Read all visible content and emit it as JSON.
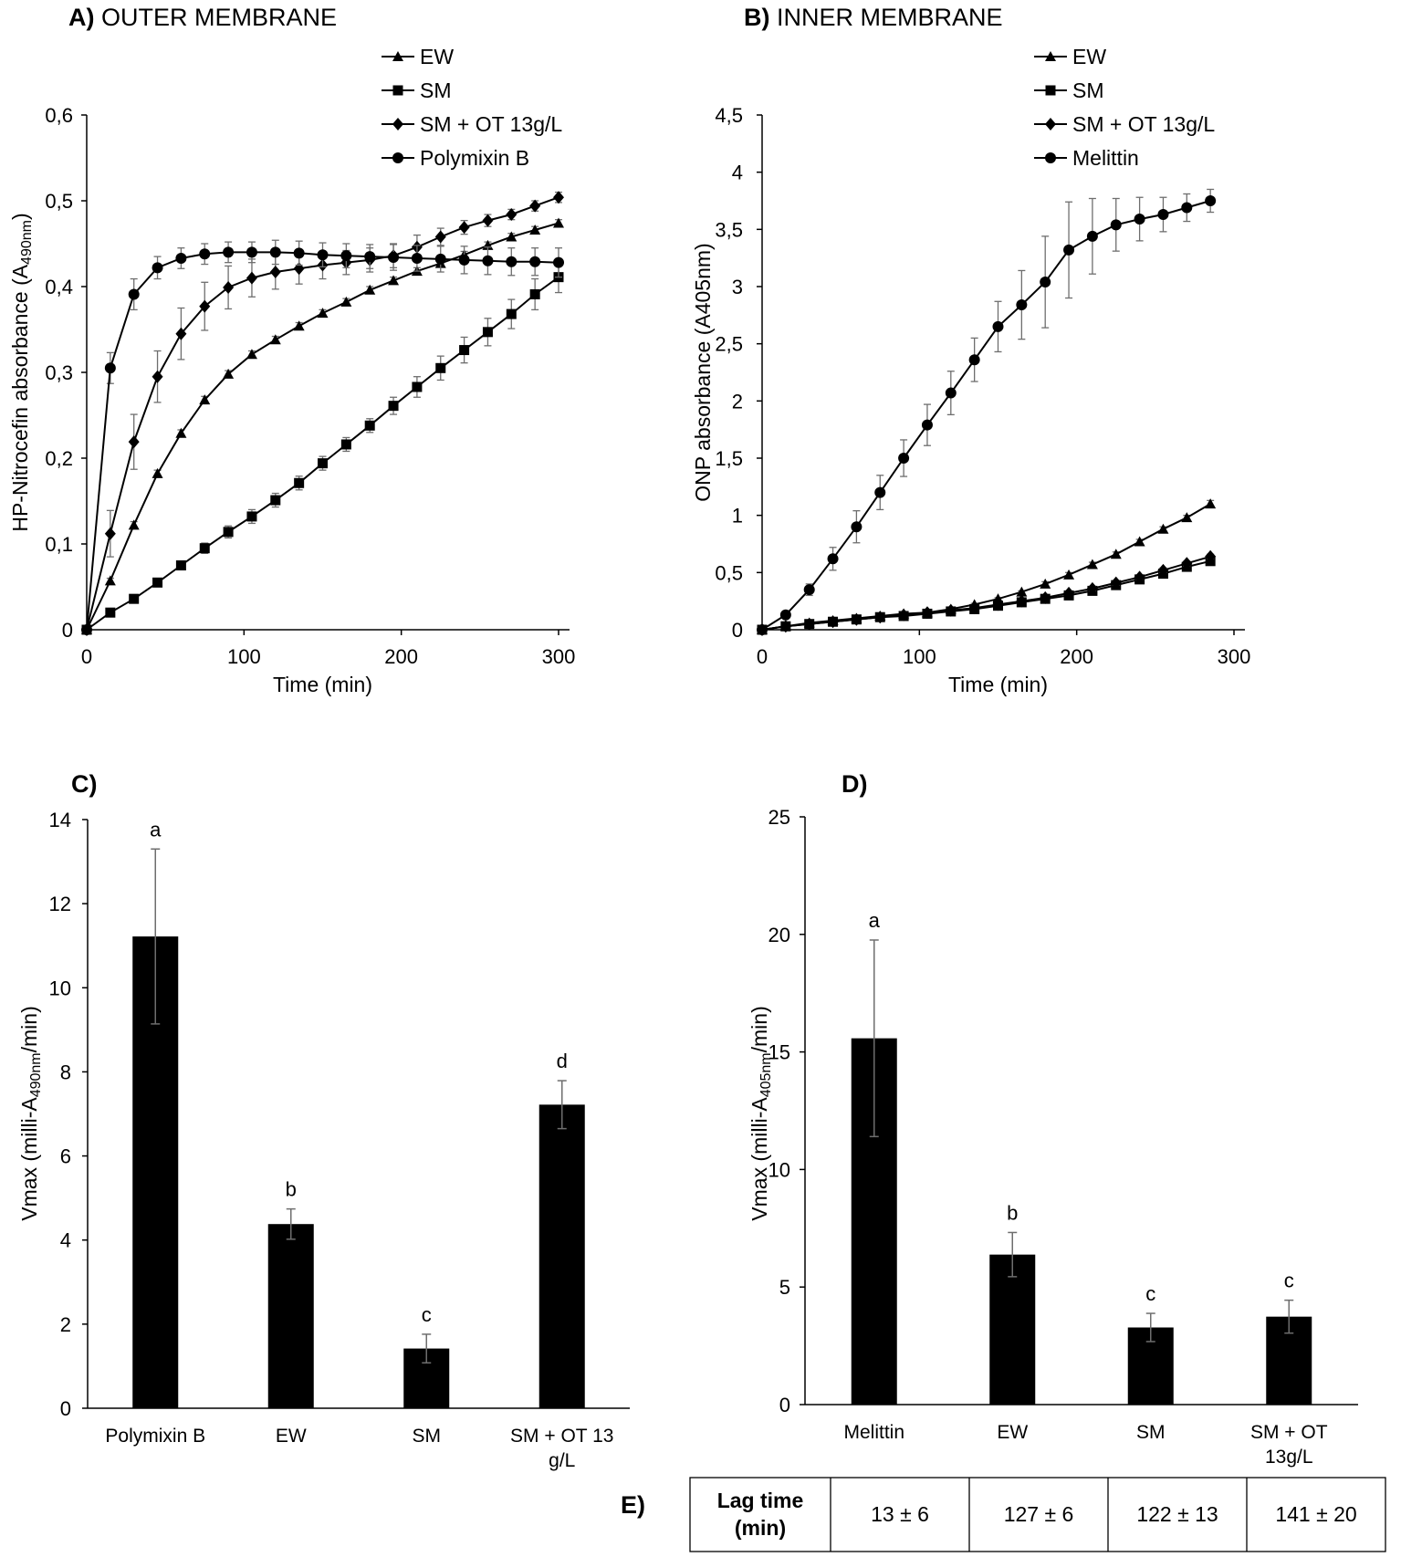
{
  "panel_labels": {
    "A": "A)",
    "B": "B)",
    "C": "C)",
    "D": "D)",
    "E": "E)"
  },
  "chart_data": [
    {
      "id": "A",
      "type": "line",
      "title": "OUTER MEMBRANE",
      "xlabel": "Time (min)",
      "ylabel_parts": [
        "HP-Nitrocefin absorbance (A",
        "490nm",
        ")"
      ],
      "xlim": [
        0,
        300
      ],
      "ylim": [
        0,
        0.6
      ],
      "xticks": [
        0,
        100,
        200,
        300
      ],
      "yticks": [
        0,
        0.1,
        0.2,
        0.3,
        0.4,
        0.5,
        0.6
      ],
      "ytick_labels": [
        "0",
        "0,1",
        "0,2",
        "0,3",
        "0,4",
        "0,5",
        "0,6"
      ],
      "x": [
        0,
        15,
        30,
        45,
        60,
        75,
        90,
        105,
        120,
        135,
        150,
        165,
        180,
        195,
        210,
        225,
        240,
        255,
        270,
        285,
        300
      ],
      "series": [
        {
          "name": "EW",
          "marker": "triangle",
          "values": [
            0,
            0.057,
            0.122,
            0.182,
            0.229,
            0.268,
            0.298,
            0.321,
            0.338,
            0.354,
            0.369,
            0.382,
            0.396,
            0.407,
            0.418,
            0.427,
            0.437,
            0.448,
            0.458,
            0.466,
            0.474
          ],
          "errors": [
            0,
            0.003,
            0.004,
            0.004,
            0.004,
            0.004,
            0.004,
            0.004,
            0.004,
            0.004,
            0.004,
            0.004,
            0.004,
            0.004,
            0.004,
            0.004,
            0.004,
            0.004,
            0.004,
            0.004,
            0.004
          ]
        },
        {
          "name": "SM",
          "marker": "square",
          "values": [
            0,
            0.02,
            0.036,
            0.055,
            0.075,
            0.095,
            0.114,
            0.132,
            0.151,
            0.171,
            0.194,
            0.216,
            0.238,
            0.261,
            0.283,
            0.305,
            0.326,
            0.347,
            0.368,
            0.391,
            0.411
          ],
          "errors": [
            0,
            0.002,
            0.003,
            0.004,
            0.005,
            0.006,
            0.007,
            0.008,
            0.008,
            0.008,
            0.008,
            0.008,
            0.008,
            0.01,
            0.012,
            0.014,
            0.015,
            0.016,
            0.017,
            0.018,
            0.018
          ]
        },
        {
          "name": "SM + OT 13g/L",
          "marker": "diamond",
          "values": [
            0,
            0.112,
            0.219,
            0.295,
            0.345,
            0.377,
            0.399,
            0.41,
            0.417,
            0.421,
            0.425,
            0.428,
            0.431,
            0.436,
            0.446,
            0.458,
            0.469,
            0.477,
            0.484,
            0.494,
            0.504
          ],
          "errors": [
            0,
            0.027,
            0.032,
            0.03,
            0.03,
            0.028,
            0.025,
            0.022,
            0.02,
            0.018,
            0.016,
            0.014,
            0.014,
            0.014,
            0.014,
            0.01,
            0.008,
            0.007,
            0.006,
            0.006,
            0.006
          ]
        },
        {
          "name": "Polymixin B",
          "marker": "circle",
          "values": [
            0,
            0.305,
            0.391,
            0.422,
            0.433,
            0.438,
            0.44,
            0.44,
            0.44,
            0.439,
            0.437,
            0.436,
            0.435,
            0.434,
            0.433,
            0.432,
            0.431,
            0.43,
            0.429,
            0.429,
            0.428
          ],
          "errors": [
            0,
            0.018,
            0.018,
            0.013,
            0.012,
            0.012,
            0.012,
            0.012,
            0.014,
            0.014,
            0.014,
            0.014,
            0.014,
            0.015,
            0.015,
            0.015,
            0.016,
            0.016,
            0.016,
            0.016,
            0.017
          ]
        }
      ]
    },
    {
      "id": "B",
      "type": "line",
      "title": "INNER MEMBRANE",
      "xlabel": "Time (min)",
      "ylabel": "ONP absorbance (A405nm)",
      "xlim": [
        0,
        300
      ],
      "ylim": [
        0,
        4.5
      ],
      "xticks": [
        0,
        100,
        200,
        300
      ],
      "yticks": [
        0,
        0.5,
        1,
        1.5,
        2,
        2.5,
        3,
        3.5,
        4,
        4.5
      ],
      "ytick_labels": [
        "0",
        "0,5",
        "1",
        "1,5",
        "2",
        "2,5",
        "3",
        "3,5",
        "4",
        "4,5"
      ],
      "x": [
        0,
        15,
        30,
        45,
        60,
        75,
        90,
        105,
        120,
        135,
        150,
        165,
        180,
        195,
        210,
        225,
        240,
        255,
        270,
        285
      ],
      "series": [
        {
          "name": "EW",
          "marker": "triangle",
          "values": [
            0,
            0.03,
            0.06,
            0.08,
            0.1,
            0.12,
            0.14,
            0.15,
            0.18,
            0.22,
            0.27,
            0.33,
            0.4,
            0.48,
            0.57,
            0.66,
            0.77,
            0.88,
            0.98,
            1.1
          ],
          "errors": [
            0,
            0.01,
            0.01,
            0.01,
            0.01,
            0.01,
            0.01,
            0.01,
            0.01,
            0.01,
            0.01,
            0.01,
            0.02,
            0.02,
            0.02,
            0.02,
            0.02,
            0.02,
            0.02,
            0.03
          ]
        },
        {
          "name": "SM",
          "marker": "square",
          "values": [
            0,
            0.03,
            0.05,
            0.07,
            0.09,
            0.11,
            0.12,
            0.14,
            0.16,
            0.18,
            0.21,
            0.24,
            0.27,
            0.3,
            0.34,
            0.39,
            0.44,
            0.49,
            0.55,
            0.6
          ],
          "errors": [
            0,
            0.01,
            0.01,
            0.01,
            0.01,
            0.01,
            0.01,
            0.01,
            0.01,
            0.01,
            0.01,
            0.01,
            0.01,
            0.01,
            0.02,
            0.02,
            0.02,
            0.02,
            0.02,
            0.02
          ]
        },
        {
          "name": "SM + OT 13g/L",
          "marker": "diamond",
          "values": [
            0,
            0.03,
            0.05,
            0.07,
            0.09,
            0.11,
            0.13,
            0.15,
            0.17,
            0.19,
            0.22,
            0.25,
            0.28,
            0.32,
            0.36,
            0.41,
            0.46,
            0.52,
            0.58,
            0.64
          ],
          "errors": [
            0,
            0.01,
            0.01,
            0.01,
            0.01,
            0.01,
            0.01,
            0.01,
            0.01,
            0.01,
            0.01,
            0.01,
            0.01,
            0.01,
            0.02,
            0.02,
            0.02,
            0.02,
            0.02,
            0.02
          ]
        },
        {
          "name": "Melittin",
          "marker": "circle",
          "values": [
            0,
            0.13,
            0.35,
            0.62,
            0.9,
            1.2,
            1.5,
            1.79,
            2.07,
            2.36,
            2.65,
            2.84,
            3.04,
            3.32,
            3.44,
            3.54,
            3.59,
            3.63,
            3.69,
            3.75
          ],
          "errors": [
            0,
            0.02,
            0.05,
            0.1,
            0.14,
            0.15,
            0.16,
            0.18,
            0.19,
            0.19,
            0.22,
            0.3,
            0.4,
            0.42,
            0.33,
            0.23,
            0.19,
            0.15,
            0.12,
            0.1
          ]
        }
      ]
    },
    {
      "id": "C",
      "type": "bar",
      "ylabel_parts": [
        "Vmax (milli-A",
        "490nm",
        "/min)"
      ],
      "categories": [
        "Polymixin B",
        "EW",
        "SM",
        "SM + OT 13 g/L"
      ],
      "category_lines": [
        [
          "Polymixin B"
        ],
        [
          "EW"
        ],
        [
          "SM"
        ],
        [
          "SM + OT 13",
          "g/L"
        ]
      ],
      "values": [
        11.22,
        4.38,
        1.42,
        7.22
      ],
      "errors": [
        2.08,
        0.36,
        0.34,
        0.57
      ],
      "significance": [
        "a",
        "b",
        "c",
        "d"
      ],
      "ylim": [
        0,
        14
      ],
      "yticks": [
        0,
        2,
        4,
        6,
        8,
        10,
        12,
        14
      ],
      "ytick_labels": [
        "0",
        "2",
        "4",
        "6",
        "8",
        "10",
        "12",
        "14"
      ]
    },
    {
      "id": "D",
      "type": "bar",
      "ylabel_parts": [
        "Vmax (milli-A",
        "405nm",
        "/min)"
      ],
      "categories": [
        "Melittin",
        "EW",
        "SM",
        "SM + OT 13g/L"
      ],
      "category_lines": [
        [
          "Melittin"
        ],
        [
          "EW"
        ],
        [
          "SM"
        ],
        [
          "SM + OT",
          "13g/L"
        ]
      ],
      "values": [
        15.58,
        6.38,
        3.28,
        3.74
      ],
      "errors": [
        4.18,
        0.94,
        0.6,
        0.7
      ],
      "significance": [
        "a",
        "b",
        "c",
        "c"
      ],
      "ylim": [
        0,
        25
      ],
      "yticks": [
        0,
        5,
        10,
        15,
        20,
        25
      ],
      "ytick_labels": [
        "0",
        "5",
        "10",
        "15",
        "20",
        "25"
      ]
    },
    {
      "id": "E",
      "type": "table",
      "header_lines": [
        "Lag time",
        "(min)"
      ],
      "values": [
        "13 ± 6",
        "127 ± 6",
        "122 ± 13",
        "141 ± 20"
      ]
    }
  ]
}
